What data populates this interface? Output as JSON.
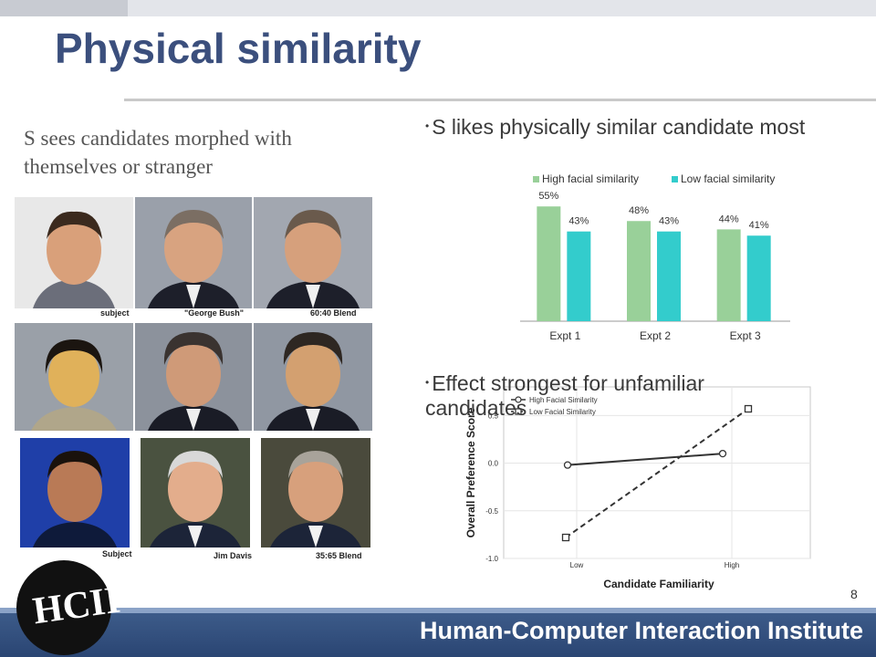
{
  "slide": {
    "title": "Physical similarity",
    "left_text": "S sees candidates morphed with themselves or stranger",
    "bullet_1": "S likes physically similar candidate most",
    "bullet_2": "Effect strongest for unfamiliar candidates",
    "page_number": "8",
    "footer": "Human-Computer Interaction Institute",
    "logo_text": "HCII"
  },
  "photo_grid": {
    "rows": [
      {
        "captions": [
          "subject",
          "\"George Bush\"",
          "60:40 Blend"
        ]
      },
      {
        "captions": [
          "",
          "",
          ""
        ]
      },
      {
        "captions": [
          "Subject",
          "Jim Davis",
          "35:65 Blend"
        ]
      }
    ]
  },
  "chart_data": [
    {
      "type": "bar",
      "categories": [
        "Expt 1",
        "Expt 2",
        "Expt 3"
      ],
      "series": [
        {
          "name": "High facial similarity",
          "values": [
            55,
            48,
            44
          ],
          "labels": [
            "55%",
            "48%",
            "44%"
          ],
          "color": "#99d099"
        },
        {
          "name": "Low facial similarity",
          "values": [
            43,
            43,
            41
          ],
          "labels": [
            "43%",
            "43%",
            "41%"
          ],
          "color": "#33cccc"
        }
      ],
      "ylim": [
        0,
        60
      ],
      "legend": "top",
      "grid": false
    },
    {
      "type": "line",
      "categories": [
        "Low",
        "High"
      ],
      "series": [
        {
          "name": "High Facial Similarity",
          "values": [
            -0.02,
            0.1
          ],
          "style": "solid",
          "marker": "circle"
        },
        {
          "name": "Low Facial Similarity",
          "values": [
            -0.78,
            0.57
          ],
          "style": "dashed",
          "marker": "square"
        }
      ],
      "xlabel": "Candidate Familiarity",
      "ylabel": "Overall Preference Score",
      "yticks": [
        "-1.0",
        "-0.5",
        "0.0",
        "0.5"
      ],
      "ylim": [
        -1.0,
        0.8
      ],
      "legend": "top-left",
      "grid": true
    }
  ],
  "colors": {
    "title": "#3b4f7d",
    "footer": "#2a4573"
  }
}
